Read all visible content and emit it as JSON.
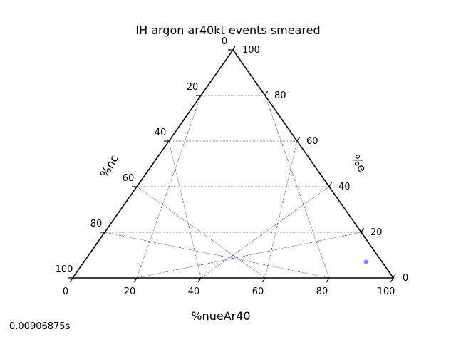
{
  "chart_data": {
    "type": "scatter",
    "subtype": "ternary",
    "title": "IH argon ar40kt events smeared",
    "axes": {
      "bottom": {
        "label": "%nueAr40",
        "ticks": [
          "0",
          "20",
          "40",
          "60",
          "80",
          "100"
        ]
      },
      "left": {
        "label": "%nc",
        "ticks": [
          "100",
          "80",
          "60",
          "40",
          "20",
          "0"
        ]
      },
      "right": {
        "label": "%e",
        "ticks": [
          "0",
          "20",
          "40",
          "60",
          "80",
          "100"
        ]
      }
    },
    "range": [
      0,
      100
    ],
    "grid": true,
    "points": [
      {
        "nueAr40": 88,
        "e": 7,
        "nc": 5
      }
    ],
    "colors": {
      "point": "#7f7fff",
      "grid": "#00008b",
      "frame": "#000000"
    }
  },
  "footer": {
    "elapsed": "0.00906875s"
  }
}
